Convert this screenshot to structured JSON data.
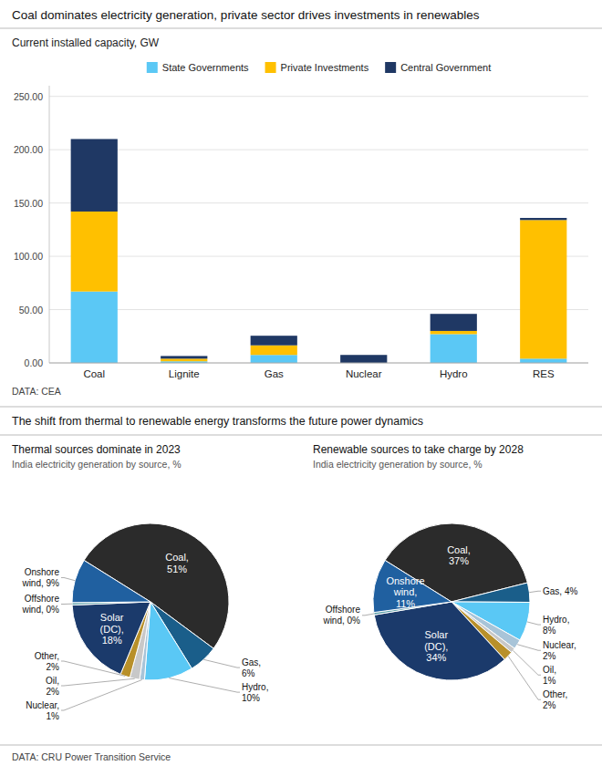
{
  "chart_data": [
    {
      "type": "bar",
      "title": "Coal dominates electricity generation, private sector drives investments in renewables",
      "subtitle": "Current installed capacity, GW",
      "source": "DATA: CEA",
      "categories": [
        "Coal",
        "Lignite",
        "Gas",
        "Nuclear",
        "Hydro",
        "RES"
      ],
      "series": [
        {
          "name": "State Governments",
          "color": "#5BC8F5",
          "values": [
            67,
            1.5,
            7.5,
            0,
            27,
            4
          ]
        },
        {
          "name": "Private Investments",
          "color": "#FFC000",
          "values": [
            75,
            2.5,
            9,
            0,
            3,
            130
          ]
        },
        {
          "name": "Central Government",
          "color": "#1F3864",
          "values": [
            68,
            2.5,
            9,
            7.5,
            16,
            2
          ]
        }
      ],
      "stacked": true,
      "ylim": [
        0,
        260
      ],
      "yticks": [
        {
          "value": 0,
          "label": "0.00"
        },
        {
          "value": 50,
          "label": "50.00"
        },
        {
          "value": 100,
          "label": "100.00"
        },
        {
          "value": 150,
          "label": "150.00"
        },
        {
          "value": 200,
          "label": "200.00"
        },
        {
          "value": 250,
          "label": "250.00"
        }
      ],
      "grid": true,
      "legend": "top"
    },
    {
      "type": "pie",
      "section_title": "The shift from thermal to renewable energy transforms the future power dynamics",
      "title": "Thermal sources dominate in 2023",
      "subtitle": "India electricity generation by source, %",
      "values": [
        51,
        6,
        10,
        1,
        2,
        2,
        18,
        0.5,
        9
      ],
      "value_labels": [
        "Coal,\n51%",
        "Gas,\n6%",
        "Hydro,\n10%",
        "Nuclear,\n1%",
        "Oil,\n2%",
        "Other,\n2%",
        "Solar\n(DC),\n18%",
        "Offshore\nwind, 0%",
        "Onshore\nwind, 9%"
      ],
      "colors": [
        "#2B2B2B",
        "#1A5E8A",
        "#5AC8F5",
        "#A8C4D8",
        "#C8C8C8",
        "#B8902A",
        "#1B3A6B",
        "#5A9EA8",
        "#2060A0"
      ],
      "data_labels": true
    },
    {
      "type": "pie",
      "title": "Renewable sources to take charge by 2028",
      "subtitle": "India electricity generation by source, %",
      "values": [
        37,
        4,
        8,
        2,
        1,
        2,
        34,
        0.5,
        11
      ],
      "value_labels": [
        "Coal,\n37%",
        "Gas, 4%",
        "Hydro,\n8%",
        "Nuclear,\n2%",
        "Oil,\n1%",
        "Other,\n2%",
        "Solar\n(DC),\n34%",
        "Offshore\nwind, 0%",
        "Onshore\nwind,\n11%"
      ],
      "colors": [
        "#2B2B2B",
        "#1A5E8A",
        "#5AC8F5",
        "#A8C4D8",
        "#C8C8C8",
        "#B8902A",
        "#1B3A6B",
        "#5A9EA8",
        "#2060A0"
      ],
      "data_labels": true,
      "source": "DATA: CRU Power Transition Service"
    }
  ]
}
